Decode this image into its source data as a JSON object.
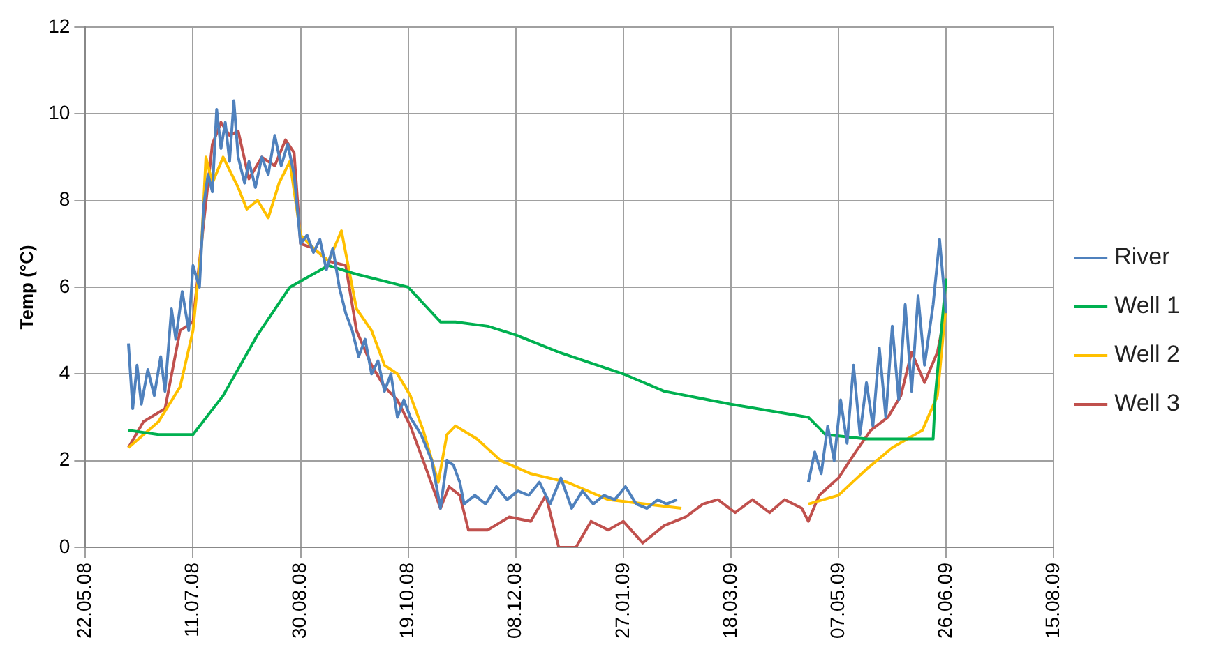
{
  "chart_data": {
    "type": "line",
    "ylabel": "Temp (°C)",
    "xlim": [
      "2008-05-22",
      "2009-08-15"
    ],
    "xticks": [
      {
        "value": "2008-05-22",
        "label": "22.05.08"
      },
      {
        "value": "2008-07-11",
        "label": "11.07.08"
      },
      {
        "value": "2008-08-30",
        "label": "30.08.08"
      },
      {
        "value": "2008-10-19",
        "label": "19.10.08"
      },
      {
        "value": "2008-12-08",
        "label": "08.12.08"
      },
      {
        "value": "2009-01-27",
        "label": "27.01.09"
      },
      {
        "value": "2009-03-18",
        "label": "18.03.09"
      },
      {
        "value": "2009-05-07",
        "label": "07.05.09"
      },
      {
        "value": "2009-06-26",
        "label": "26.06.09"
      },
      {
        "value": "2009-08-15",
        "label": "15.08.09"
      }
    ],
    "ylim": [
      0,
      12
    ],
    "yticks": [
      0,
      2,
      4,
      6,
      8,
      10,
      12
    ],
    "grid": true,
    "legend": "right",
    "marker": "none",
    "line_style": "solid",
    "series": [
      {
        "name": "River",
        "color": "#4f81bd",
        "x": [
          "2008-06-11",
          "2008-06-13",
          "2008-06-15",
          "2008-06-17",
          "2008-06-20",
          "2008-06-23",
          "2008-06-26",
          "2008-06-28",
          "2008-07-01",
          "2008-07-03",
          "2008-07-06",
          "2008-07-09",
          "2008-07-11",
          "2008-07-14",
          "2008-07-16",
          "2008-07-18",
          "2008-07-20",
          "2008-07-22",
          "2008-07-24",
          "2008-07-26",
          "2008-07-28",
          "2008-07-30",
          "2008-08-01",
          "2008-08-04",
          "2008-08-06",
          "2008-08-09",
          "2008-08-12",
          "2008-08-15",
          "2008-08-18",
          "2008-08-21",
          "2008-08-24",
          "2008-08-27",
          "2008-08-30",
          "2008-09-02",
          "2008-09-05",
          "2008-09-08",
          "2008-09-11",
          "2008-09-14",
          "2008-09-17",
          "2008-09-20",
          "2008-09-23",
          "2008-09-26",
          "2008-09-29",
          "2008-10-02",
          "2008-10-05",
          "2008-10-08",
          "2008-10-11",
          "2008-10-14",
          "2008-10-17",
          "2008-10-20",
          "2008-10-25",
          "2008-10-30",
          "2008-11-03",
          "2008-11-06",
          "2008-11-09",
          "2008-11-12",
          "2008-11-14",
          "2008-11-19",
          "2008-11-24",
          "2008-11-29",
          "2008-12-04",
          "2008-12-09",
          "2008-12-14",
          "2008-12-19",
          "2008-12-24",
          "2008-12-29",
          "2009-01-03",
          "2009-01-08",
          "2009-01-13",
          "2009-01-18",
          "2009-01-23",
          "2009-01-28",
          "2009-02-02",
          "2009-02-07",
          "2009-02-12",
          "2009-02-16",
          "2009-02-21",
          "2009-03-20",
          "2009-04-23",
          "2009-04-26",
          "2009-04-29",
          "2009-05-02",
          "2009-05-05",
          "2009-05-08",
          "2009-05-11",
          "2009-05-14",
          "2009-05-17",
          "2009-05-20",
          "2009-05-23",
          "2009-05-26",
          "2009-05-29",
          "2009-06-01",
          "2009-06-04",
          "2009-06-07",
          "2009-06-10",
          "2009-06-13",
          "2009-06-16",
          "2009-06-20",
          "2009-06-23",
          "2009-06-26"
        ],
        "values": [
          4.7,
          3.2,
          4.2,
          3.3,
          4.1,
          3.5,
          4.4,
          3.6,
          5.5,
          4.8,
          5.9,
          5.0,
          6.5,
          6.0,
          7.9,
          8.6,
          8.2,
          10.1,
          9.2,
          9.8,
          8.9,
          10.3,
          9.0,
          8.4,
          8.9,
          8.3,
          9.0,
          8.6,
          9.5,
          8.8,
          9.3,
          8.6,
          7.0,
          7.2,
          6.8,
          7.1,
          6.4,
          6.9,
          6.0,
          5.4,
          5.0,
          4.4,
          4.8,
          4.0,
          4.3,
          3.6,
          4.0,
          3.0,
          3.4,
          3.0,
          2.6,
          2.0,
          0.9,
          2.0,
          1.9,
          1.5,
          1.0,
          1.2,
          1.0,
          1.4,
          1.1,
          1.3,
          1.2,
          1.5,
          1.0,
          1.6,
          0.9,
          1.3,
          1.0,
          1.2,
          1.1,
          1.4,
          1.0,
          0.9,
          1.1,
          1.0,
          1.1,
          null,
          1.5,
          2.2,
          1.7,
          2.8,
          2.0,
          3.4,
          2.4,
          4.2,
          2.6,
          3.8,
          2.8,
          4.6,
          3.0,
          5.1,
          3.4,
          5.6,
          3.6,
          5.8,
          4.2,
          5.6,
          7.1,
          5.4
        ]
      },
      {
        "name": "Well 1",
        "color": "#00b050",
        "x": [
          "2008-06-11",
          "2008-06-25",
          "2008-07-11",
          "2008-07-25",
          "2008-08-10",
          "2008-08-25",
          "2008-09-12",
          "2008-09-25",
          "2008-10-19",
          "2008-11-03",
          "2008-11-10",
          "2008-11-25",
          "2008-12-08",
          "2008-12-28",
          "2009-01-27",
          "2009-02-15",
          "2009-03-18",
          "2009-04-23",
          "2009-05-01",
          "2009-05-20",
          "2009-06-20",
          "2009-06-21",
          "2009-06-26"
        ],
        "values": [
          2.7,
          2.6,
          2.6,
          3.5,
          4.9,
          6.0,
          6.5,
          6.3,
          6.0,
          5.2,
          5.2,
          5.1,
          4.9,
          4.5,
          4.0,
          3.6,
          3.3,
          3.0,
          2.6,
          2.5,
          2.5,
          3.5,
          6.2
        ]
      },
      {
        "name": "Well 2",
        "color": "#ffc000",
        "x": [
          "2008-06-11",
          "2008-06-25",
          "2008-07-05",
          "2008-07-11",
          "2008-07-15",
          "2008-07-17",
          "2008-07-20",
          "2008-07-25",
          "2008-08-01",
          "2008-08-05",
          "2008-08-10",
          "2008-08-15",
          "2008-08-20",
          "2008-08-25",
          "2008-08-30",
          "2008-09-05",
          "2008-09-12",
          "2008-09-18",
          "2008-09-25",
          "2008-10-02",
          "2008-10-08",
          "2008-10-14",
          "2008-10-20",
          "2008-10-26",
          "2008-11-02",
          "2008-11-06",
          "2008-11-10",
          "2008-11-20",
          "2008-12-01",
          "2008-12-15",
          "2009-01-01",
          "2009-01-20",
          "2009-02-23",
          "2009-03-20",
          "2009-04-23",
          "2009-05-07",
          "2009-05-20",
          "2009-06-01",
          "2009-06-15",
          "2009-06-22",
          "2009-06-26"
        ],
        "values": [
          2.3,
          2.9,
          3.7,
          5.0,
          7.0,
          9.0,
          8.4,
          9.0,
          8.3,
          7.8,
          8.0,
          7.6,
          8.4,
          8.9,
          7.2,
          6.9,
          6.6,
          7.3,
          5.5,
          5.0,
          4.2,
          4.0,
          3.5,
          2.7,
          1.5,
          2.6,
          2.8,
          2.5,
          2.0,
          1.7,
          1.5,
          1.1,
          0.9,
          null,
          1.0,
          1.2,
          1.8,
          2.3,
          2.7,
          3.5,
          5.6
        ]
      },
      {
        "name": "Well 3",
        "color": "#c0504d",
        "x": [
          "2008-06-11",
          "2008-06-18",
          "2008-06-28",
          "2008-07-05",
          "2008-07-11",
          "2008-07-16",
          "2008-07-20",
          "2008-07-24",
          "2008-07-28",
          "2008-08-01",
          "2008-08-06",
          "2008-08-12",
          "2008-08-18",
          "2008-08-23",
          "2008-08-27",
          "2008-08-30",
          "2008-09-05",
          "2008-09-12",
          "2008-09-20",
          "2008-09-25",
          "2008-10-02",
          "2008-10-08",
          "2008-10-14",
          "2008-10-20",
          "2008-10-26",
          "2008-11-03",
          "2008-11-07",
          "2008-11-12",
          "2008-11-16",
          "2008-11-25",
          "2008-12-05",
          "2008-12-15",
          "2008-12-22",
          "2008-12-28",
          "2009-01-05",
          "2009-01-12",
          "2009-01-20",
          "2009-01-27",
          "2009-02-05",
          "2009-02-15",
          "2009-02-25",
          "2009-03-05",
          "2009-03-12",
          "2009-03-20",
          "2009-03-28",
          "2009-04-05",
          "2009-04-12",
          "2009-04-20",
          "2009-04-23",
          "2009-04-28",
          "2009-05-07",
          "2009-05-15",
          "2009-05-22",
          "2009-05-30",
          "2009-06-05",
          "2009-06-10",
          "2009-06-16",
          "2009-06-22",
          "2009-06-26"
        ],
        "values": [
          2.3,
          2.9,
          3.2,
          5.0,
          5.2,
          7.5,
          9.3,
          9.8,
          9.5,
          9.6,
          8.5,
          9.0,
          8.8,
          9.4,
          9.1,
          7.0,
          6.9,
          6.6,
          6.5,
          5.0,
          4.2,
          3.7,
          3.4,
          2.8,
          2.0,
          0.9,
          1.4,
          1.2,
          0.4,
          0.4,
          0.7,
          0.6,
          1.2,
          0.0,
          0.0,
          0.6,
          0.4,
          0.6,
          0.1,
          0.5,
          0.7,
          1.0,
          1.1,
          0.8,
          1.1,
          0.8,
          1.1,
          0.9,
          0.6,
          1.2,
          1.6,
          2.2,
          2.7,
          3.0,
          3.5,
          4.5,
          3.8,
          4.5,
          5.5
        ]
      }
    ]
  }
}
